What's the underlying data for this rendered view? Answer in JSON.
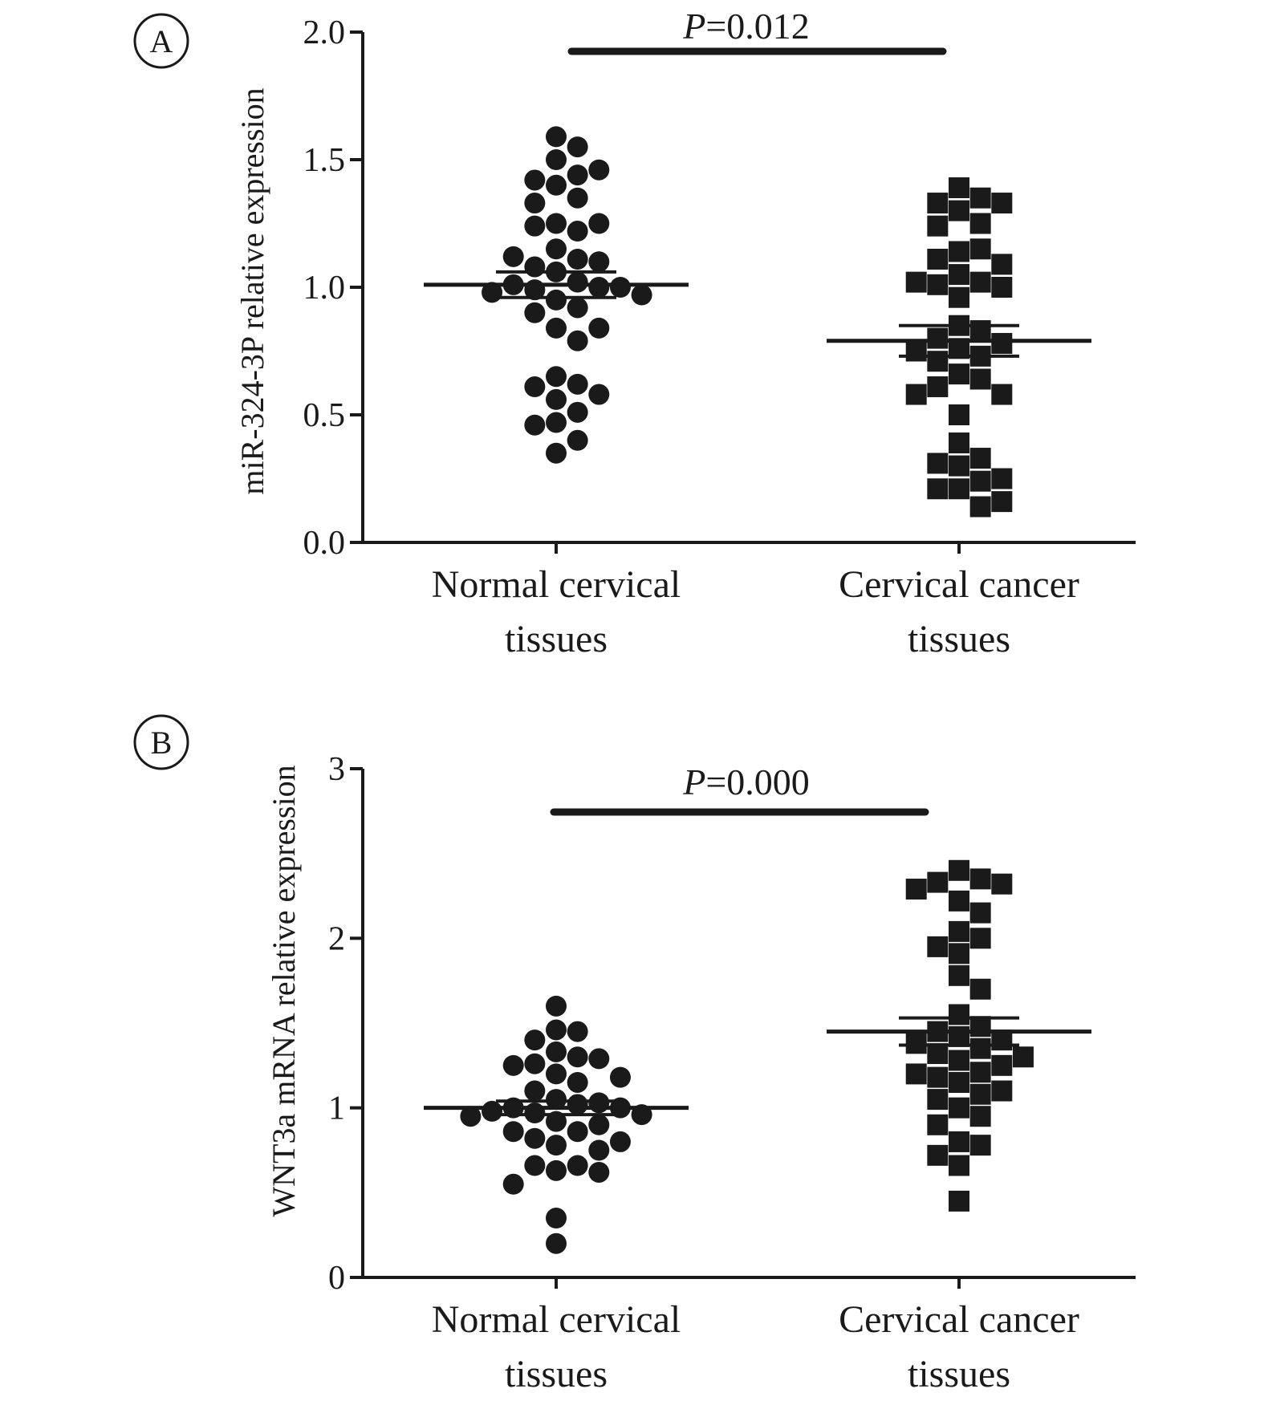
{
  "chart_data": [
    {
      "type": "scatter",
      "panel": "A",
      "ylabel": "miR-324-3P relative expression",
      "ylim": [
        0,
        2.0
      ],
      "yticks": [
        0.0,
        0.5,
        1.0,
        1.5,
        2.0
      ],
      "ytick_labels": [
        "0.0",
        "0.5",
        "1.0",
        "1.5",
        "2.0"
      ],
      "categories": [
        {
          "line1": "Normal cervical",
          "line2": "tissues"
        },
        {
          "line1": "Cervical cancer",
          "line2": "tissues"
        }
      ],
      "p_italic": "P",
      "p_rest": "=0.012",
      "series": [
        {
          "category": 0,
          "marker": "circle",
          "mean": 1.01,
          "sem": 0.05,
          "values": [
            1.59,
            1.55,
            1.5,
            1.44,
            1.4,
            1.42,
            1.46,
            1.35,
            1.33,
            1.25,
            1.22,
            1.24,
            1.25,
            1.15,
            1.11,
            1.08,
            1.06,
            1.1,
            1.12,
            1.02,
            1.0,
            1.01,
            0.99,
            1.0,
            0.98,
            0.95,
            0.97,
            0.92,
            0.9,
            0.84,
            0.84,
            0.79,
            0.65,
            0.62,
            0.61,
            0.58,
            0.56,
            0.51,
            0.47,
            0.46,
            0.4,
            0.35
          ]
        },
        {
          "category": 1,
          "marker": "square",
          "mean": 0.79,
          "sem": 0.06,
          "values": [
            1.39,
            1.35,
            1.33,
            1.33,
            1.3,
            1.25,
            1.24,
            1.14,
            1.15,
            1.11,
            1.09,
            1.05,
            1.02,
            1.01,
            1.0,
            1.02,
            0.96,
            0.85,
            0.83,
            0.8,
            0.78,
            0.76,
            0.75,
            0.73,
            0.71,
            0.66,
            0.64,
            0.61,
            0.58,
            0.58,
            0.5,
            0.39,
            0.33,
            0.3,
            0.31,
            0.25,
            0.24,
            0.21,
            0.21,
            0.16,
            0.14
          ]
        }
      ]
    },
    {
      "type": "scatter",
      "panel": "B",
      "ylabel": "WNT3a mRNA relative expression",
      "ylim": [
        0,
        3
      ],
      "yticks": [
        0,
        1,
        2,
        3
      ],
      "ytick_labels": [
        "0",
        "1",
        "2",
        "3"
      ],
      "categories": [
        {
          "line1": "Normal cervical",
          "line2": "tissues"
        },
        {
          "line1": "Cervical cancer",
          "line2": "tissues"
        }
      ],
      "p_italic": "P",
      "p_rest": "=0.000",
      "series": [
        {
          "category": 0,
          "marker": "circle",
          "mean": 1.0,
          "sem": 0.04,
          "values": [
            1.6,
            1.46,
            1.45,
            1.4,
            1.33,
            1.3,
            1.29,
            1.26,
            1.25,
            1.2,
            1.18,
            1.15,
            1.1,
            1.05,
            1.03,
            1.02,
            1.0,
            1.0,
            0.98,
            0.97,
            0.96,
            0.95,
            0.92,
            0.9,
            0.86,
            0.86,
            0.82,
            0.8,
            0.78,
            0.75,
            0.66,
            0.66,
            0.63,
            0.62,
            0.55,
            0.35,
            0.2
          ]
        },
        {
          "category": 1,
          "marker": "square",
          "mean": 1.45,
          "sem": 0.08,
          "values": [
            2.4,
            2.35,
            2.33,
            2.32,
            2.29,
            2.22,
            2.15,
            2.04,
            2.0,
            1.95,
            1.91,
            1.78,
            1.7,
            1.55,
            1.48,
            1.45,
            1.42,
            1.4,
            1.38,
            1.35,
            1.32,
            1.3,
            1.28,
            1.25,
            1.21,
            1.2,
            1.18,
            1.15,
            1.1,
            1.08,
            1.05,
            1.0,
            0.95,
            0.9,
            0.8,
            0.78,
            0.72,
            0.66,
            0.45
          ]
        }
      ]
    }
  ]
}
